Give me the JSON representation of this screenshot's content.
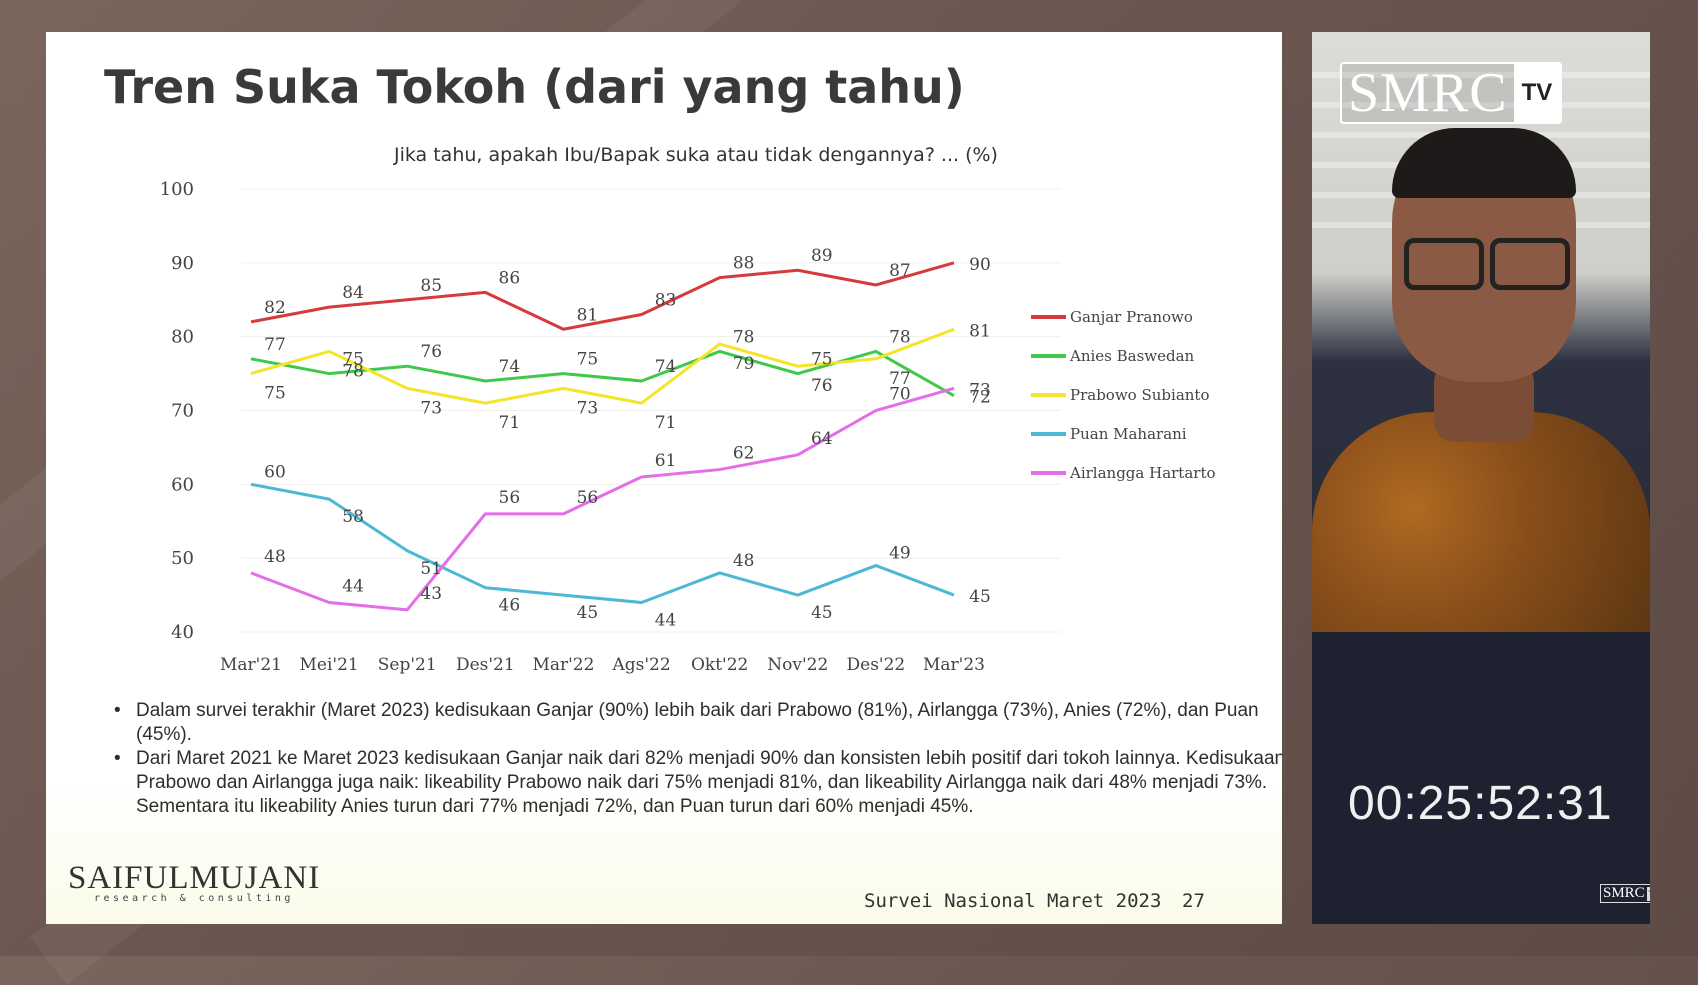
{
  "slide": {
    "title": "Tren Suka Tokoh (dari yang tahu)",
    "footer_text": "Survei Nasional Maret 2023",
    "page_number": "27",
    "brand_name": "SAIFULMUJANI",
    "brand_sub": "research & consulting",
    "notes": [
      "Dalam survei terakhir (Maret 2023) kedisukaan Ganjar (90%) lebih baik dari Prabowo (81%), Airlangga (73%), Anies (72%), dan Puan (45%).",
      "Dari Maret 2021 ke Maret 2023 kedisukaan Ganjar naik dari 82% menjadi 90% dan konsisten lebih positif dari tokoh lainnya. Kedisukaan Prabowo dan Airlangga juga naik: likeability Prabowo naik dari 75% menjadi 81%, dan likeability Airlangga naik dari 48% menjadi 73%. Sementara itu likeability Anies turun dari 77% menjadi 72%, dan Puan turun dari 60% menjadi 45%."
    ]
  },
  "video": {
    "logo_text": "SMRC",
    "logo_tv": "TV",
    "timecode": "00:25:52:31"
  },
  "chart_data": {
    "type": "line",
    "title": "",
    "subtitle": "Jika tahu, apakah Ibu/Bapak suka atau tidak dengannya? ... (%)",
    "categories": [
      "Mar'21",
      "Mei'21",
      "Sep'21",
      "Des'21",
      "Mar'22",
      "Ags'22",
      "Okt'22",
      "Nov'22",
      "Des'22",
      "Mar'23"
    ],
    "ylim": [
      40,
      100
    ],
    "yticks": [
      40,
      50,
      60,
      70,
      80,
      90,
      100
    ],
    "grid": true,
    "legend_position": "right",
    "series": [
      {
        "name": "Ganjar Pranowo",
        "color": "#d63a3a",
        "values": [
          82,
          84,
          85,
          86,
          81,
          83,
          88,
          89,
          87,
          90
        ]
      },
      {
        "name": "Anies Baswedan",
        "color": "#3ec94a",
        "values": [
          77,
          75,
          76,
          74,
          75,
          74,
          78,
          75,
          78,
          72
        ]
      },
      {
        "name": "Prabowo Subianto",
        "color": "#f5e42a",
        "values": [
          75,
          78,
          73,
          71,
          73,
          71,
          79,
          76,
          77,
          81
        ]
      },
      {
        "name": "Puan Maharani",
        "color": "#4db8d4",
        "values": [
          60,
          58,
          51,
          46,
          45,
          44,
          48,
          45,
          49,
          45
        ]
      },
      {
        "name": "Airlangga Hartarto",
        "color": "#e36ee8",
        "values": [
          48,
          44,
          43,
          56,
          56,
          61,
          62,
          64,
          70,
          73
        ]
      }
    ]
  }
}
